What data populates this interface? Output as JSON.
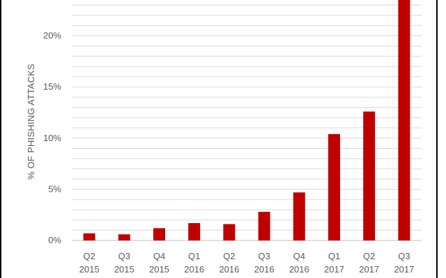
{
  "chart_data": {
    "type": "bar",
    "ylabel": "% OF PHISHING ATTACKS",
    "xlabel": "",
    "title": "",
    "categories": [
      [
        "Q2",
        "2015"
      ],
      [
        "Q3",
        "2015"
      ],
      [
        "Q4",
        "2015"
      ],
      [
        "Q1",
        "2016"
      ],
      [
        "Q2",
        "2016"
      ],
      [
        "Q3",
        "2016"
      ],
      [
        "Q4",
        "2016"
      ],
      [
        "Q1",
        "2017"
      ],
      [
        "Q2",
        "2017"
      ],
      [
        "Q3",
        "2017"
      ]
    ],
    "values": [
      0.7,
      0.6,
      1.2,
      1.7,
      1.6,
      2.8,
      4.7,
      10.4,
      12.6,
      24.0
    ],
    "ylim": [
      0,
      23.5
    ],
    "yticks": [
      0,
      5,
      10,
      15,
      20
    ],
    "ytick_labels": [
      "0%",
      "5%",
      "10%",
      "15%",
      "20%"
    ],
    "grid": true,
    "bar_color": "#c00000",
    "grid_color": "#d9d9d9"
  }
}
